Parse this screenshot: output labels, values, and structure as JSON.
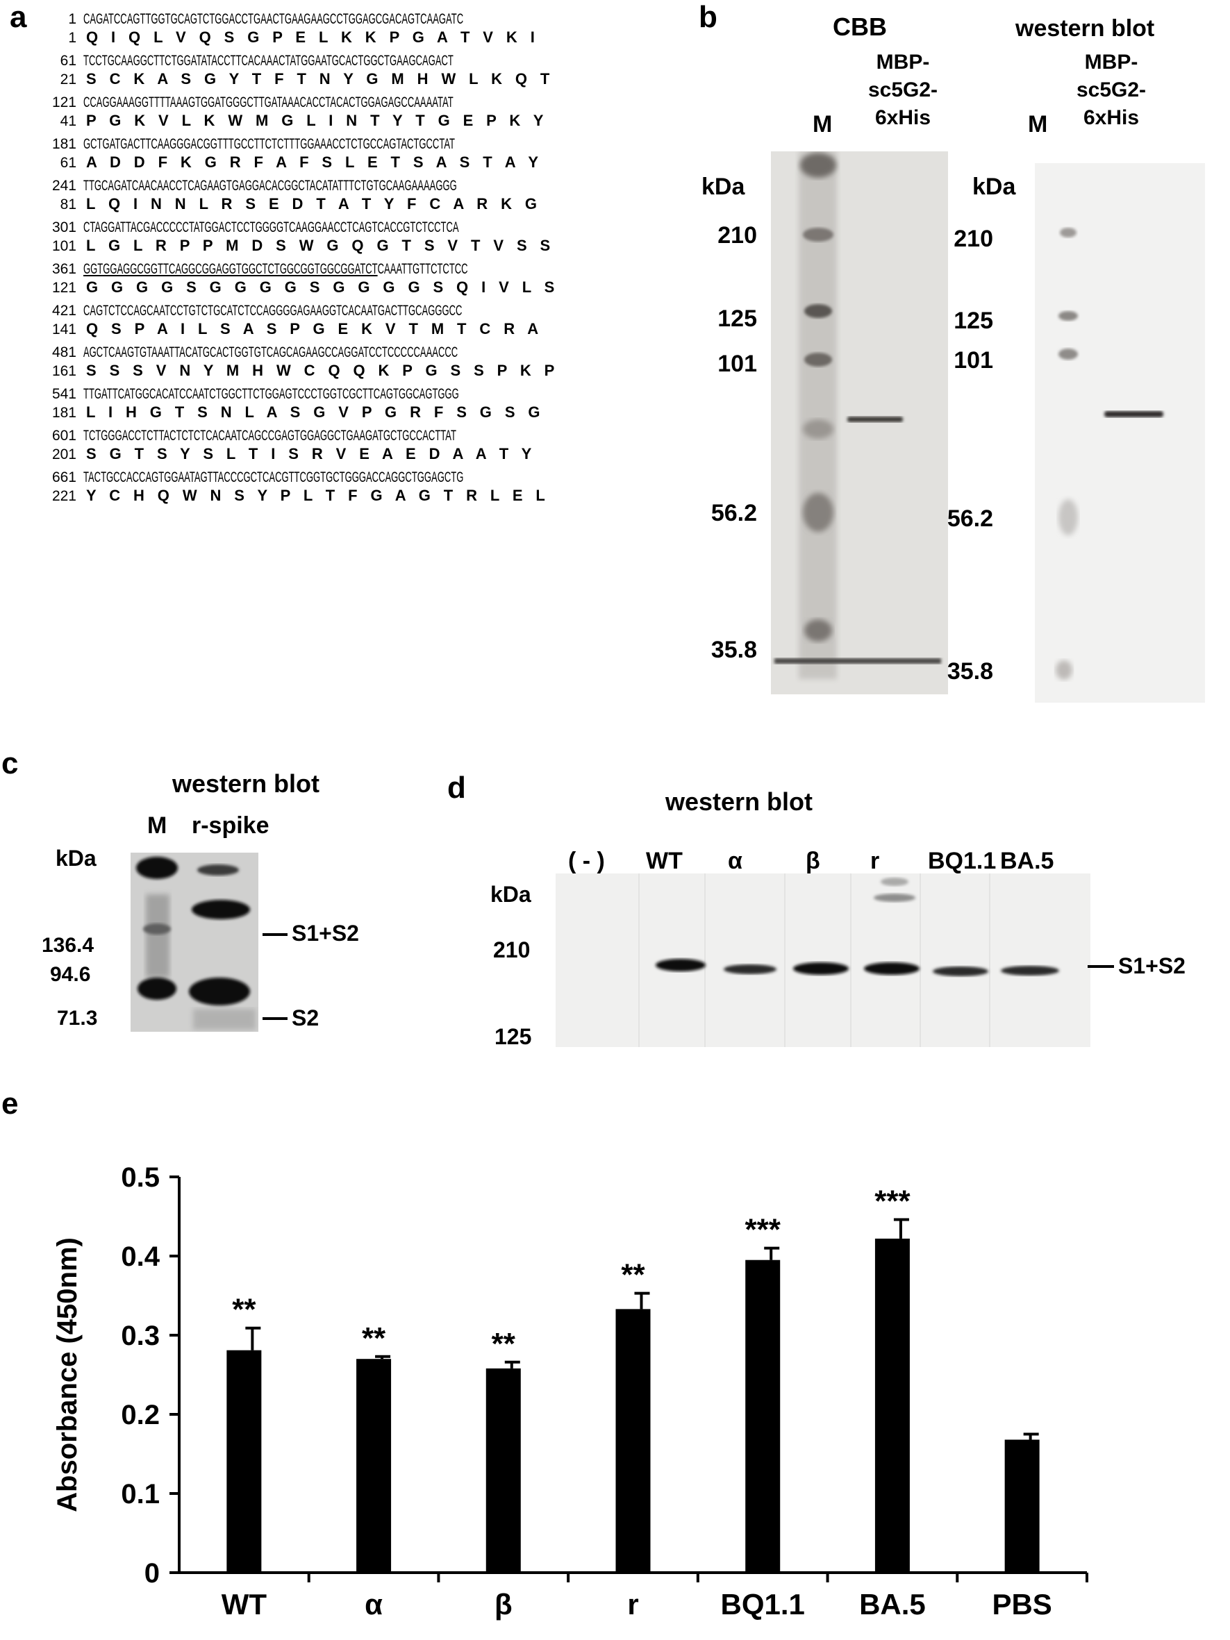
{
  "panel_a": {
    "letter": "a",
    "lines": [
      {
        "n": "1",
        "nt": "CAGATCCAGTTGGTGCAGTCTGGACCTGAACTGAAGAAGCCTGGAGCGACAGTCAAGATC",
        "a": "1",
        "aa": "Q I Q L V Q S G P E L K K P G A T V K I"
      },
      {
        "n": "61",
        "nt": "TCCTGCAAGGCTTCTGGATATACCTTCACAAACTATGGAATGCACTGGCTGAAGCAGACT",
        "a": "21",
        "aa": "S C K A S G Y T F T N Y G M H W L K Q T"
      },
      {
        "n": "121",
        "nt": "CCAGGAAAGGTTTTAAAGTGGATGGGCTTGATAAACACCTACACTGGAGAGCCAAAATAT",
        "a": "41",
        "aa": "P G K V L K W M G L I N T Y T G E P K Y"
      },
      {
        "n": "181",
        "nt": "GCTGATGACTTCAAGGGACGGTTTGCCTTCTCTTTGGAAACCTCTGCCAGTACTGCCTAT",
        "a": "61",
        "aa": "A D D F K G R F A F S L E T S A S T A Y"
      },
      {
        "n": "241",
        "nt": "TTGCAGATCAACAACCTCAGAAGTGAGGACACGGCTACATATTTCTGTGCAAGAAAAGGG",
        "a": "81",
        "aa": "L Q I N N L R S E D T A T Y F C A R K G"
      },
      {
        "n": "301",
        "nt": "CTAGGATTACGACCCCCTATGGACTCCTGGGGTCAAGGAACCTCAGTCACCGTCTCCTCA",
        "a": "101",
        "aa": "L G L R P P M D S W G Q G T S V T V S S"
      },
      {
        "n": "361",
        "nt_u": "GGTGGAGGCGGTTCAGGCGGAGGTGGCTCTGGCGGTGGCGGATCT",
        "nt_rest": "CAAATTGTTCTCTCC",
        "a": "121",
        "aa": "G G G G S G G G G S G G G G S Q I V L S"
      },
      {
        "n": "421",
        "nt": "CAGTCTCCAGCAATCCTGTCTGCATCTCCAGGGGAGAAGGTCACAATGACTTGCAGGGCC",
        "a": "141",
        "aa": "Q S P A I L S A S P G E K V T M T C R A"
      },
      {
        "n": "481",
        "nt": "AGCTCAAGTGTAAATTACATGCACTGGTGTCAGCAGAAGCCAGGATCCTCCCCCAAACCC",
        "a": "161",
        "aa": "S S S V N Y M H W C Q Q K P G S S P K P"
      },
      {
        "n": "541",
        "nt": "TTGATTCATGGCACATCCAATCTGGCTTCTGGAGTCCCTGGTCGCTTCAGTGGCAGTGGG",
        "a": "181",
        "aa": "L I H G T S N L A S G V P G R F S G S G"
      },
      {
        "n": "601",
        "nt": "TCTGGGACCTCTTACTCTCTCACAATCAGCCGAGTGGAGGCTGAAGATGCTGCCACTTAT",
        "a": "201",
        "aa": "S G T S Y S L T I S R V E A E D A A T Y"
      },
      {
        "n": "661",
        "nt": "TACTGCCACCAGTGGAATAGTTACCCGCTCACGTTCGGTGCTGGGACCAGGCTGGAGCTG",
        "a": "221",
        "aa": "Y C H Q W N S Y P L T F G A G T R L E L"
      }
    ]
  },
  "panel_b": {
    "letter": "b",
    "cbb_title": "CBB",
    "wb_title": "western blot",
    "lane_m": "M",
    "lane_sample": [
      "MBP-",
      "sc5G2-",
      "6xHis"
    ],
    "kda": "kDa",
    "markers": [
      "210",
      "125",
      "101",
      "56.2",
      "35.8"
    ]
  },
  "panel_c": {
    "letter": "c",
    "title": "western blot",
    "lane_m": "M",
    "lane_sample": "r-spike",
    "kda": "kDa",
    "markers": [
      "136.4",
      "94.6",
      "71.3"
    ],
    "band_labels": [
      "S1+S2",
      "S2"
    ]
  },
  "panel_d": {
    "letter": "d",
    "title": "western blot",
    "lanes": [
      "( - )",
      "WT",
      "α",
      "β",
      "r",
      "BQ1.1",
      "BA.5"
    ],
    "kda": "kDa",
    "markers": [
      "210",
      "125"
    ],
    "band_label": "S1+S2"
  },
  "panel_e": {
    "letter": "e"
  },
  "chart_data": {
    "type": "bar",
    "categories": [
      "WT",
      "α",
      "β",
      "r",
      "BQ1.1",
      "BA.5",
      "PBS"
    ],
    "values": [
      0.281,
      0.27,
      0.258,
      0.333,
      0.395,
      0.422,
      0.168
    ],
    "errors": [
      0.028,
      0.003,
      0.008,
      0.02,
      0.015,
      0.024,
      0.007
    ],
    "significance": [
      "**",
      "**",
      "**",
      "**",
      "***",
      "***",
      ""
    ],
    "ylabel": "Absorbance (450nm)",
    "xlabel": "",
    "ylim": [
      0,
      0.5
    ],
    "yticks": [
      "0",
      "0.1",
      "0.2",
      "0.3",
      "0.4",
      "0.5"
    ],
    "bar_color": "#000000",
    "grid": false
  }
}
